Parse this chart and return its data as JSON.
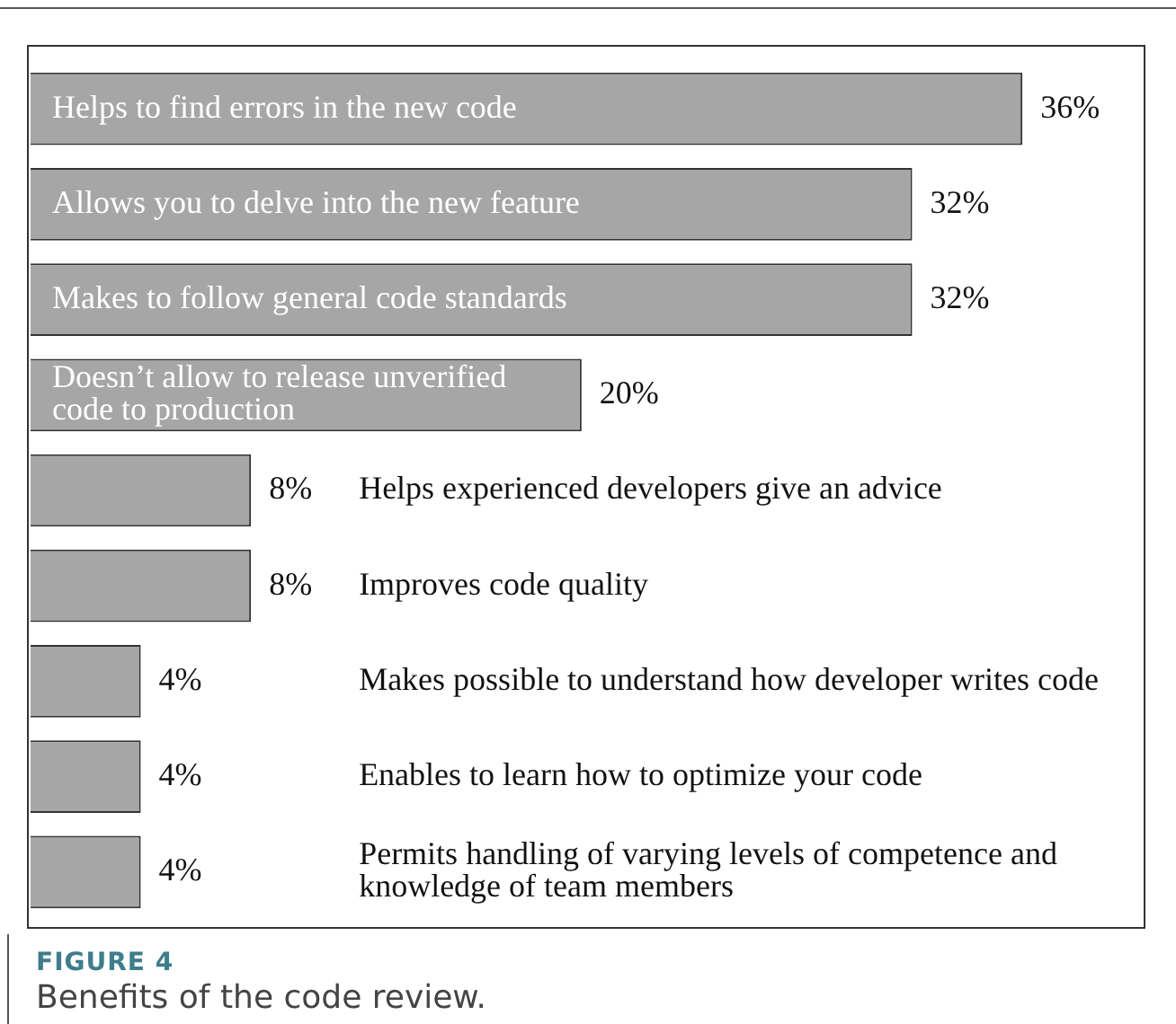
{
  "chart_data": {
    "type": "bar",
    "orientation": "horizontal",
    "title": "Benefits of the code review.",
    "annotations": [
      "FIGURE 4"
    ],
    "categories": [
      "Helps to find errors in the new code",
      "Allows you to delve into the new feature",
      "Makes to follow general code standards",
      "Doesn’t allow to release unverified code to production",
      "Helps experienced developers give an advice",
      "Improves code quality",
      "Makes possible to understand how developer writes code",
      "Enables to learn how to optimize your code",
      "Permits handling of varying levels of competence and knowledge of team members"
    ],
    "values": [
      36,
      32,
      32,
      20,
      8,
      8,
      4,
      4,
      4
    ],
    "value_labels": [
      "36%",
      "32%",
      "32%",
      "20%",
      "8%",
      "8%",
      "4%",
      "4%",
      "4%"
    ],
    "color": "#a6a6a6",
    "legend": false,
    "tick_labels": false
  }
}
